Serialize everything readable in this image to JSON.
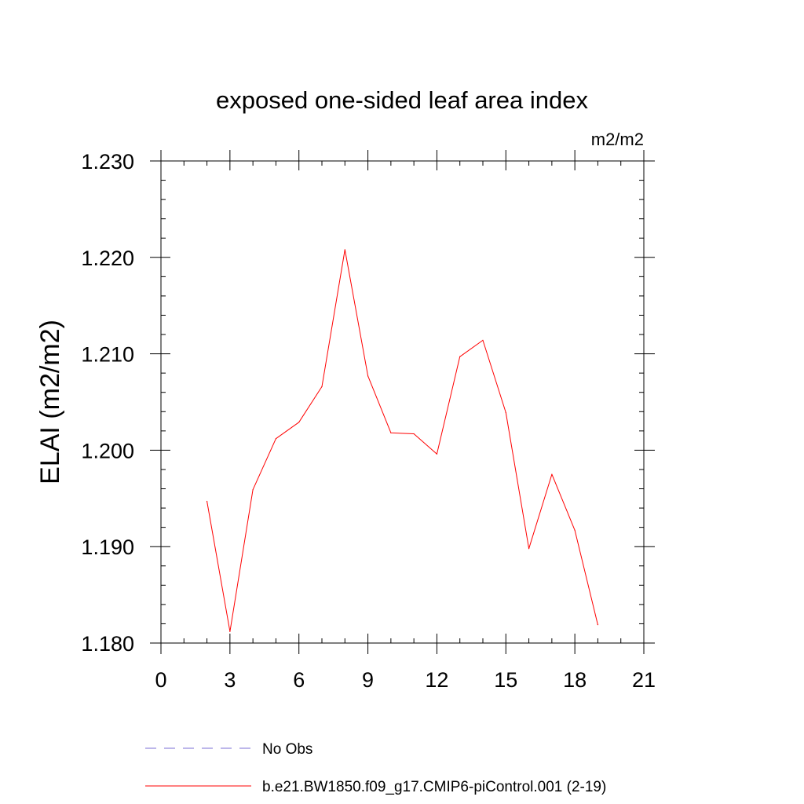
{
  "chart_data": {
    "type": "line",
    "title": "exposed one-sided leaf area index",
    "units_label": "m2/m2",
    "ylabel": "ELAI  (m2/m2)",
    "xlabel": "",
    "xlim": [
      0,
      21
    ],
    "ylim": [
      1.18,
      1.23
    ],
    "x_ticks": [
      0,
      3,
      6,
      9,
      12,
      15,
      18,
      21
    ],
    "x_tick_labels": [
      "0",
      "3",
      "6",
      "9",
      "12",
      "15",
      "18",
      "21"
    ],
    "y_ticks": [
      1.18,
      1.19,
      1.2,
      1.21,
      1.22,
      1.23
    ],
    "y_tick_labels": [
      "1.180",
      "1.190",
      "1.200",
      "1.210",
      "1.220",
      "1.230"
    ],
    "grid": false,
    "legend_position": "bottom",
    "series": [
      {
        "name": "No Obs",
        "color": "#7b6fd6",
        "dash": "dashed",
        "x": [],
        "y": []
      },
      {
        "name": "b.e21.BW1850.f09_g17.CMIP6-piControl.001 (2-19)",
        "color": "#ff0000",
        "dash": "solid",
        "x": [
          2,
          3,
          4,
          5,
          6,
          7,
          8,
          9,
          10,
          11,
          12,
          13,
          14,
          15,
          16,
          17,
          18,
          19
        ],
        "y": [
          1.1947,
          1.1812,
          1.1959,
          1.2012,
          1.2029,
          1.2066,
          1.2208,
          1.2077,
          1.2018,
          1.2017,
          1.1996,
          1.2097,
          1.2114,
          1.2039,
          1.1898,
          1.1975,
          1.1917,
          1.1819
        ]
      }
    ]
  }
}
